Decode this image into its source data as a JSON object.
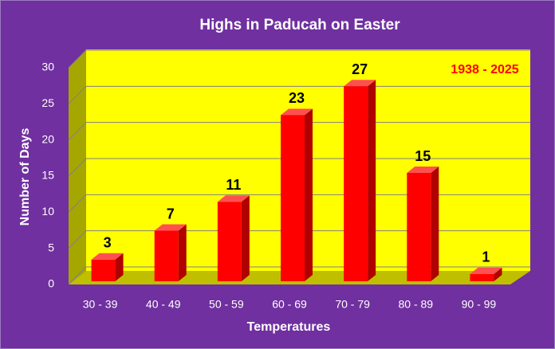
{
  "chart_data": {
    "type": "bar",
    "title": "Highs in Paducah on Easter",
    "annotation": "1938 - 2025",
    "x_label": "Temperatures",
    "y_label": "Number of Days",
    "categories": [
      "30 - 39",
      "40 - 49",
      "50 - 59",
      "60 - 69",
      "70 - 79",
      "80 - 89",
      "90 - 99"
    ],
    "values": [
      3,
      7,
      11,
      23,
      27,
      15,
      1
    ],
    "color": "#ff0000",
    "ylim": [
      0,
      30
    ],
    "yticks": [
      0,
      5,
      10,
      15,
      20,
      25,
      30
    ],
    "grid": true
  }
}
